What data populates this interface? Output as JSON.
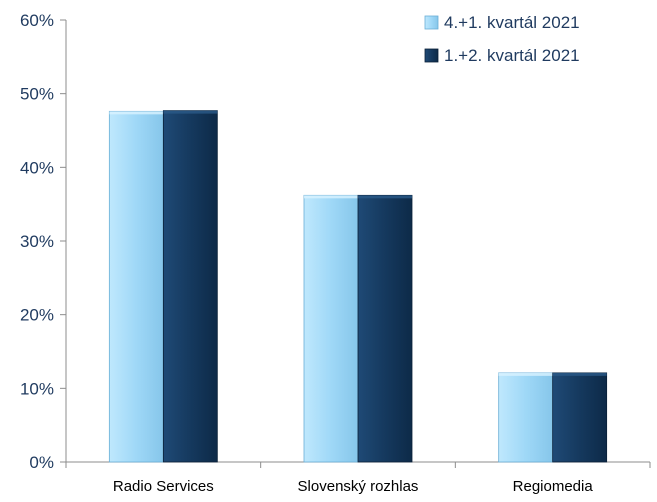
{
  "chart_data": {
    "type": "bar",
    "categories": [
      "Radio Services",
      "Slovenský rozhlas",
      "Regiomedia"
    ],
    "series": [
      {
        "name": "4.+1. kvartál 2021",
        "values": [
          47.6,
          36.2,
          12.1
        ],
        "color": "#9fd8f7"
      },
      {
        "name": "1.+2. kvartál 2021",
        "values": [
          47.7,
          36.2,
          12.1
        ],
        "color": "#15395e"
      }
    ],
    "ylim": [
      0,
      60
    ],
    "yticks": [
      0,
      10,
      20,
      30,
      40,
      50,
      60
    ],
    "ytick_labels": [
      "0%",
      "10%",
      "20%",
      "30%",
      "40%",
      "50%",
      "60%"
    ],
    "grid": false,
    "legend_position": "top-right",
    "title": "",
    "xlabel": "",
    "ylabel": ""
  }
}
